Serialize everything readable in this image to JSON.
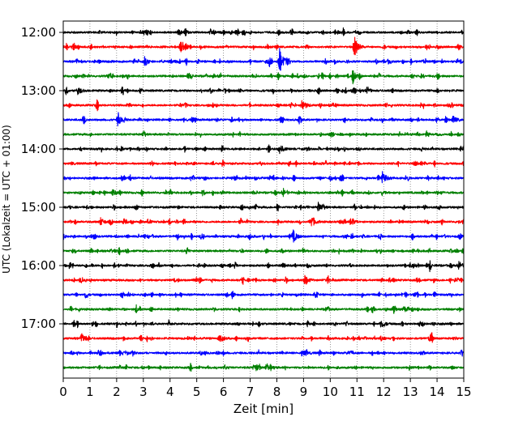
{
  "chart_data": {
    "type": "line",
    "subtype": "helicorder-seismogram",
    "xlabel": "Zeit  [min]",
    "ylabel": "UTC (Lokalzeit = UTC + 01:00)",
    "xlim": [
      0,
      15
    ],
    "x_ticks": [
      "0",
      "1",
      "2",
      "3",
      "4",
      "5",
      "6",
      "7",
      "8",
      "9",
      "10",
      "11",
      "12",
      "13",
      "14",
      "15"
    ],
    "y_tick_labels": [
      "12:00",
      "13:00",
      "14:00",
      "15:00",
      "16:00",
      "17:00"
    ],
    "traces_per_hour": 4,
    "trace_start_times": [
      "12:00",
      "12:15",
      "12:30",
      "12:45",
      "13:00",
      "13:15",
      "13:30",
      "13:45",
      "14:00",
      "14:15",
      "14:30",
      "14:45",
      "15:00",
      "15:15",
      "15:30",
      "15:45",
      "16:00",
      "16:15",
      "16:30",
      "16:45",
      "17:00",
      "17:15",
      "17:30",
      "17:45"
    ],
    "color_cycle": [
      "#000000",
      "#ff0000",
      "#0000ff",
      "#008000"
    ],
    "grid": "vertical-dotted",
    "legend": "none",
    "events": [
      {
        "trace": 1,
        "minute": 4.4,
        "amp": 0.45
      },
      {
        "trace": 1,
        "minute": 10.9,
        "amp": 0.75
      },
      {
        "trace": 2,
        "minute": 3.05,
        "amp": 0.3
      },
      {
        "trace": 2,
        "minute": 8.1,
        "amp": 0.9
      },
      {
        "trace": 3,
        "minute": 10.85,
        "amp": 0.35
      },
      {
        "trace": 4,
        "minute": 0.55,
        "amp": 0.25
      },
      {
        "trace": 5,
        "minute": 8.95,
        "amp": 0.4
      },
      {
        "trace": 6,
        "minute": 2.05,
        "amp": 0.35
      },
      {
        "trace": 6,
        "minute": 14.6,
        "amp": 0.25
      },
      {
        "trace": 8,
        "minute": 8.1,
        "amp": 0.3
      },
      {
        "trace": 8,
        "minute": 15.0,
        "amp": 0.3
      },
      {
        "trace": 10,
        "minute": 11.95,
        "amp": 0.45
      },
      {
        "trace": 12,
        "minute": 9.55,
        "amp": 0.3
      },
      {
        "trace": 13,
        "minute": 9.3,
        "amp": 0.4
      },
      {
        "trace": 13,
        "minute": 1.4,
        "amp": 0.25
      },
      {
        "trace": 14,
        "minute": 8.6,
        "amp": 0.45
      },
      {
        "trace": 16,
        "minute": 14.8,
        "amp": 0.3
      },
      {
        "trace": 17,
        "minute": 9.05,
        "amp": 0.3
      },
      {
        "trace": 20,
        "minute": 11.9,
        "amp": 0.3
      },
      {
        "trace": 21,
        "minute": 5.9,
        "amp": 0.3
      },
      {
        "trace": 22,
        "minute": 8.95,
        "amp": 0.25
      }
    ]
  }
}
